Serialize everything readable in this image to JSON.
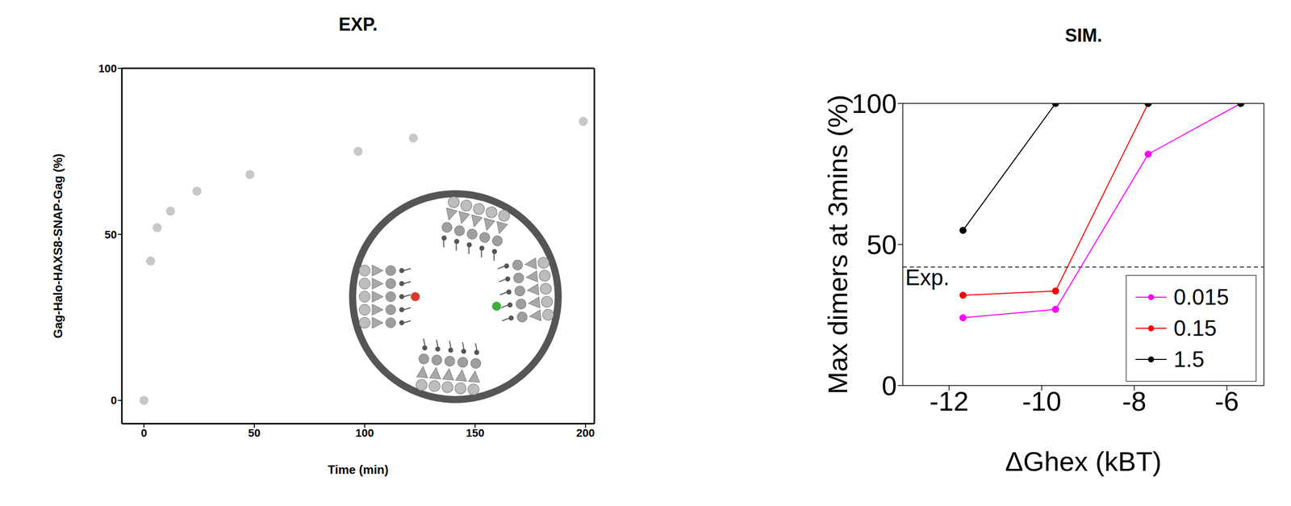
{
  "chart_data": [
    {
      "type": "scatter",
      "title": "EXP.",
      "x_label": "Time (min)",
      "y_label": "Gag-Halo-HAXS8-SNAP-Gag (%)",
      "x": [
        0,
        3,
        6,
        12,
        24,
        48,
        97,
        122,
        199
      ],
      "values": [
        0,
        42,
        52,
        57,
        63,
        68,
        75,
        79,
        84
      ],
      "color": "#c8c8c8",
      "xlim": [
        -10,
        204
      ],
      "xticks": [
        0,
        50,
        100,
        150,
        200
      ],
      "ylim": [
        -7,
        100
      ],
      "yticks": [
        0,
        50,
        100
      ],
      "marker": "circle"
    },
    {
      "type": "line",
      "title": "SIM.",
      "x_label": "ΔGhex (kBT)",
      "y_label": "Max dimers at 3mins (%)",
      "x": [
        -11.7,
        -9.7,
        -7.7,
        -5.7
      ],
      "series": [
        {
          "name": "0.015",
          "color": "#ff00ff",
          "values": [
            24,
            27,
            82,
            100
          ]
        },
        {
          "name": "0.15",
          "color": "#ff0000",
          "values": [
            32,
            33.5,
            100,
            100
          ]
        },
        {
          "name": "1.5",
          "color": "#000000",
          "values": [
            55,
            100,
            100,
            100
          ]
        }
      ],
      "xlim": [
        -13,
        -5.2
      ],
      "xticks": [
        -12,
        -10,
        -8,
        -6
      ],
      "ylim": [
        0,
        100
      ],
      "yticks": [
        0,
        50,
        100
      ],
      "legend": "lower right",
      "marker": "circle",
      "annotations": [
        {
          "text": "Exp.",
          "y": 42,
          "line_style": "dashed"
        }
      ]
    }
  ]
}
